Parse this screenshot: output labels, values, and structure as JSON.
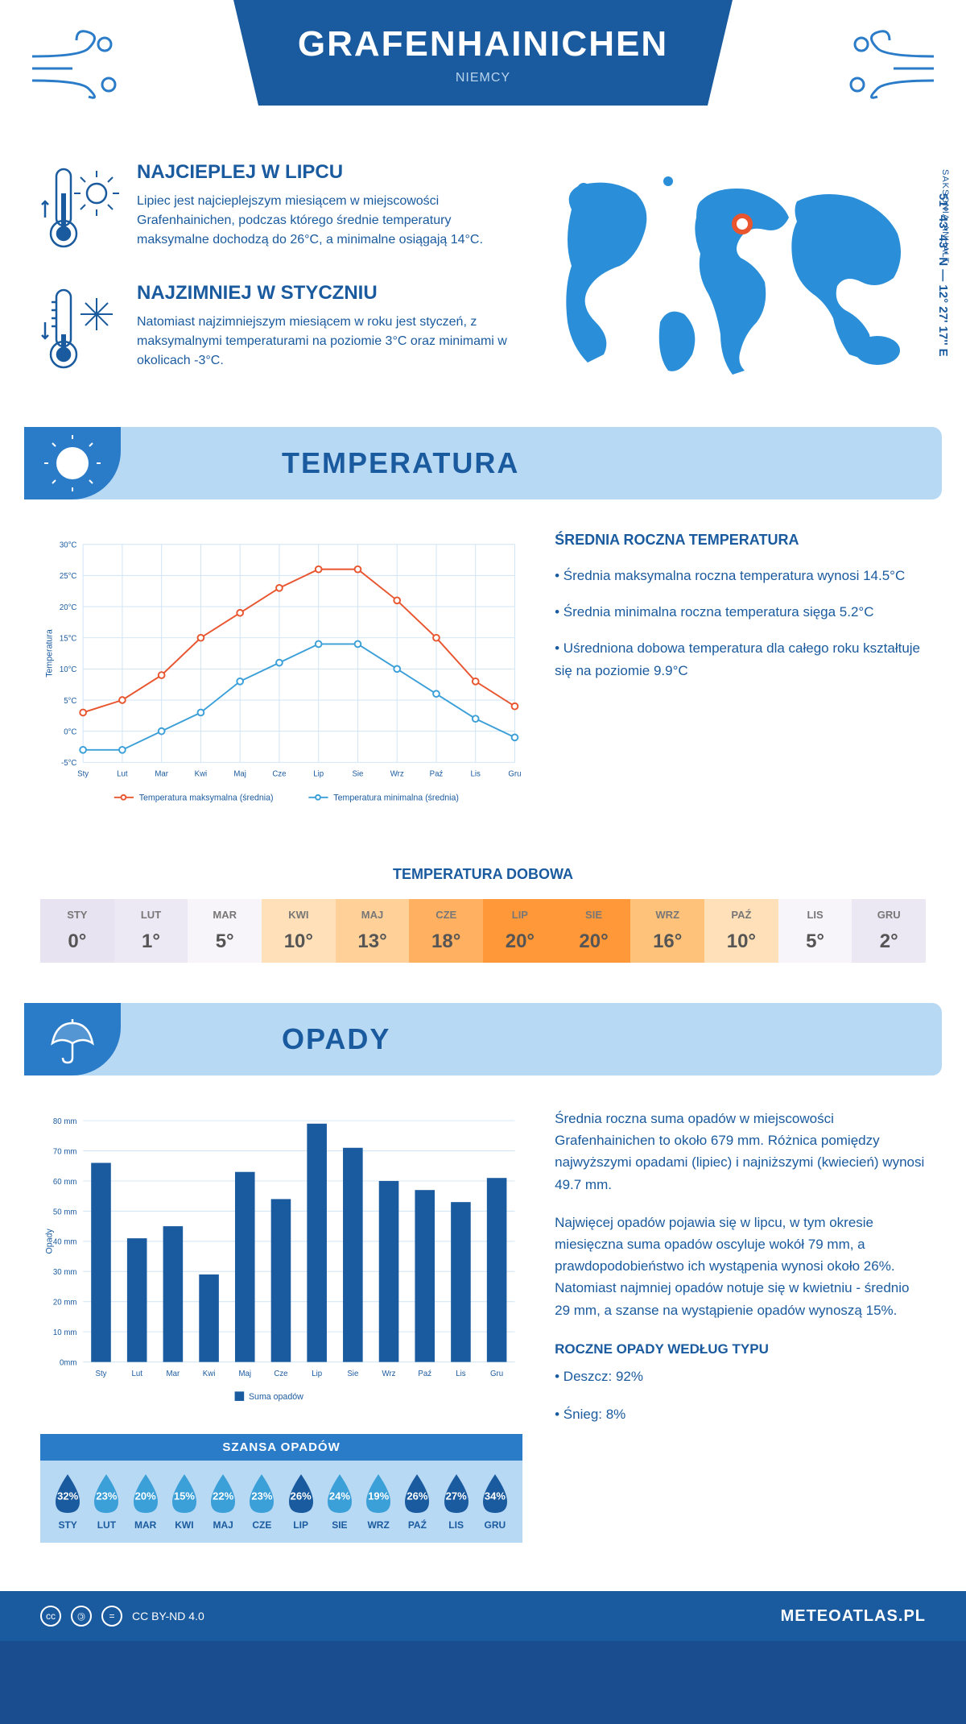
{
  "header": {
    "title": "GRAFENHAINICHEN",
    "subtitle": "NIEMCY"
  },
  "coords": "51° 43' 43'' N — 12° 27' 17'' E",
  "region": "SAKSONIA-ANHALT",
  "warmest": {
    "title": "NAJCIEPLEJ W LIPCU",
    "text": "Lipiec jest najcieplejszym miesiącem w miejscowości Grafenhainichen, podczas którego średnie temperatury maksymalne dochodzą do 26°C, a minimalne osiągają 14°C."
  },
  "coldest": {
    "title": "NAJZIMNIEJ W STYCZNIU",
    "text": "Natomiast najzimniejszym miesiącem w roku jest styczeń, z maksymalnymi temperaturami na poziomie 3°C oraz minimami w okolicach -3°C."
  },
  "temp_section": {
    "title": "TEMPERATURA"
  },
  "temp_chart": {
    "type": "line",
    "months": [
      "Sty",
      "Lut",
      "Mar",
      "Kwi",
      "Maj",
      "Cze",
      "Lip",
      "Sie",
      "Wrz",
      "Paź",
      "Lis",
      "Gru"
    ],
    "series": [
      {
        "name": "Temperatura maksymalna (średnia)",
        "color": "#e8552f",
        "values": [
          3,
          5,
          9,
          15,
          19,
          23,
          26,
          26,
          21,
          15,
          8,
          4
        ]
      },
      {
        "name": "Temperatura minimalna (średnia)",
        "color": "#3b9fd8",
        "values": [
          -3,
          -3,
          0,
          3,
          8,
          11,
          14,
          14,
          10,
          6,
          2,
          -1
        ]
      }
    ],
    "ylabel": "Temperatura",
    "ylim": [
      -5,
      30
    ],
    "ytick_step": 5,
    "yticks": [
      "-5°C",
      "0°C",
      "5°C",
      "10°C",
      "15°C",
      "20°C",
      "25°C",
      "30°C"
    ],
    "grid_color": "#d0e4f5",
    "bg": "#ffffff",
    "line_width": 2,
    "marker": "circle",
    "marker_size": 4,
    "label_fontsize": 11,
    "axis_fontsize": 10
  },
  "temp_info": {
    "title": "ŚREDNIA ROCZNA TEMPERATURA",
    "bullets": [
      "• Średnia maksymalna roczna temperatura wynosi 14.5°C",
      "• Średnia minimalna roczna temperatura sięga 5.2°C",
      "• Uśredniona dobowa temperatura dla całego roku kształtuje się na poziomie 9.9°C"
    ]
  },
  "dobowa": {
    "title": "TEMPERATURA DOBOWA",
    "months": [
      "STY",
      "LUT",
      "MAR",
      "KWI",
      "MAJ",
      "CZE",
      "LIP",
      "SIE",
      "WRZ",
      "PAŹ",
      "LIS",
      "GRU"
    ],
    "values": [
      "0°",
      "1°",
      "5°",
      "10°",
      "13°",
      "18°",
      "20°",
      "20°",
      "16°",
      "10°",
      "5°",
      "2°"
    ],
    "colors": [
      "#e8e3f0",
      "#ede9f4",
      "#f7f5fa",
      "#ffe0b8",
      "#ffd199",
      "#ffb060",
      "#ff9838",
      "#ff9838",
      "#ffc27a",
      "#ffe0b8",
      "#f7f5fa",
      "#ece8f3"
    ]
  },
  "opady_section": {
    "title": "OPADY"
  },
  "opady_chart": {
    "type": "bar",
    "months": [
      "Sty",
      "Lut",
      "Mar",
      "Kwi",
      "Maj",
      "Cze",
      "Lip",
      "Sie",
      "Wrz",
      "Paź",
      "Lis",
      "Gru"
    ],
    "values": [
      66,
      41,
      45,
      29,
      63,
      54,
      79,
      71,
      60,
      57,
      53,
      61
    ],
    "bar_color": "#1a5a9e",
    "ylabel": "Opady",
    "ylim": [
      0,
      80
    ],
    "ytick_step": 10,
    "yticks": [
      "0mm",
      "10 mm",
      "20 mm",
      "30 mm",
      "40 mm",
      "50 mm",
      "60 mm",
      "70 mm",
      "80 mm"
    ],
    "grid_color": "#d0e4f5",
    "bg": "#ffffff",
    "bar_width": 0.55,
    "legend": "Suma opadów",
    "label_fontsize": 11,
    "axis_fontsize": 10
  },
  "opady_info": {
    "p1": "Średnia roczna suma opadów w miejscowości Grafenhainichen to około 679 mm. Różnica pomiędzy najwyższymi opadami (lipiec) i najniższymi (kwiecień) wynosi 49.7 mm.",
    "p2": "Najwięcej opadów pojawia się w lipcu, w tym okresie miesięczna suma opadów oscyluje wokół 79 mm, a prawdopodobieństwo ich wystąpenia wynosi około 26%. Natomiast najmniej opadów notuje się w kwietniu - średnio 29 mm, a szanse na wystąpienie opadów wynoszą 15%.",
    "type_title": "ROCZNE OPADY WEDŁUG TYPU",
    "types": [
      "• Deszcz: 92%",
      "• Śnieg: 8%"
    ]
  },
  "szansa": {
    "title": "SZANSA OPADÓW",
    "months": [
      "STY",
      "LUT",
      "MAR",
      "KWI",
      "MAJ",
      "CZE",
      "LIP",
      "SIE",
      "WRZ",
      "PAŹ",
      "LIS",
      "GRU"
    ],
    "values": [
      "32%",
      "23%",
      "20%",
      "15%",
      "22%",
      "23%",
      "26%",
      "24%",
      "19%",
      "26%",
      "27%",
      "34%"
    ],
    "colors": [
      "#1a5a9e",
      "#3b9fd8",
      "#3b9fd8",
      "#3b9fd8",
      "#3b9fd8",
      "#3b9fd8",
      "#1a5a9e",
      "#3b9fd8",
      "#3b9fd8",
      "#1a5a9e",
      "#1a5a9e",
      "#1a5a9e"
    ]
  },
  "footer": {
    "license": "CC BY-ND 4.0",
    "site": "METEOATLAS.PL"
  }
}
